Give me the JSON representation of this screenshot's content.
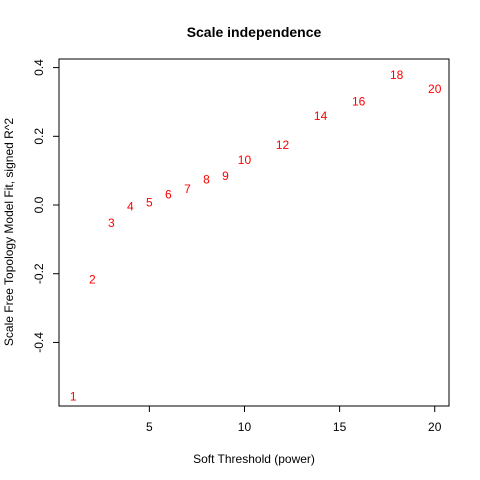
{
  "chart_data": {
    "type": "scatter",
    "title": "Scale independence",
    "xlabel": "Soft Threshold (power)",
    "ylabel": "Scale Free Topology Model Fit, signed R^2",
    "xlim": [
      0.25,
      20.75
    ],
    "ylim": [
      -0.585,
      0.425
    ],
    "x_ticks": [
      5,
      10,
      15,
      20
    ],
    "x_tick_labels": [
      "5",
      "10",
      "15",
      "20"
    ],
    "y_ticks": [
      -0.4,
      -0.2,
      0.0,
      0.2,
      0.4
    ],
    "y_tick_labels": [
      "-0.4",
      "-0.2",
      "0.0",
      "0.2",
      "0.4"
    ],
    "grid": false,
    "point_color": "#ff0000",
    "points": [
      {
        "x": 1,
        "y": -0.557,
        "label": "1"
      },
      {
        "x": 2,
        "y": -0.217,
        "label": "2"
      },
      {
        "x": 3,
        "y": -0.052,
        "label": "3"
      },
      {
        "x": 4,
        "y": -0.004,
        "label": "4"
      },
      {
        "x": 5,
        "y": 0.007,
        "label": "5"
      },
      {
        "x": 6,
        "y": 0.03,
        "label": "6"
      },
      {
        "x": 7,
        "y": 0.047,
        "label": "7"
      },
      {
        "x": 8,
        "y": 0.074,
        "label": "8"
      },
      {
        "x": 9,
        "y": 0.085,
        "label": "9"
      },
      {
        "x": 10,
        "y": 0.131,
        "label": "10"
      },
      {
        "x": 12,
        "y": 0.175,
        "label": "12"
      },
      {
        "x": 14,
        "y": 0.259,
        "label": "14"
      },
      {
        "x": 16,
        "y": 0.302,
        "label": "16"
      },
      {
        "x": 18,
        "y": 0.378,
        "label": "18"
      },
      {
        "x": 20,
        "y": 0.337,
        "label": "20"
      }
    ]
  }
}
